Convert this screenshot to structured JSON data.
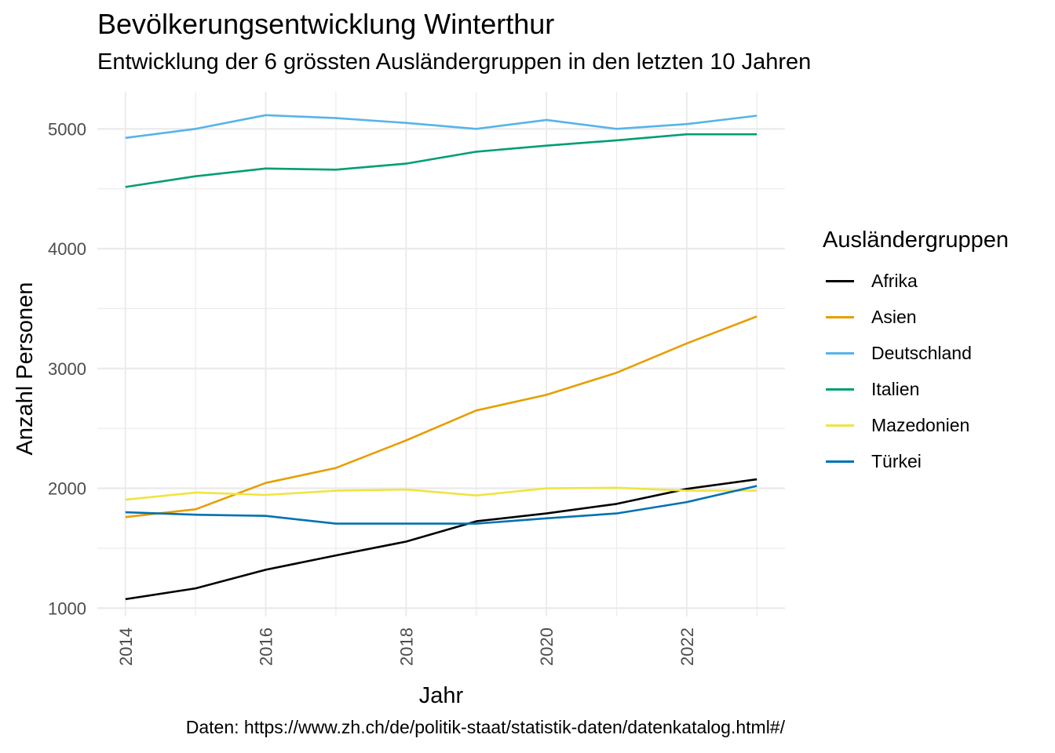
{
  "chart_data": {
    "type": "line",
    "title": "Bevölkerungsentwicklung Winterthur",
    "subtitle": "Entwicklung der 6 grössten Ausländergruppen in den letzten 10 Jahren",
    "xlabel": "Jahr",
    "ylabel": "Anzahl Personen",
    "caption": "Daten: https://www.zh.ch/de/politik-staat/statistik-daten/datenkatalog.html#/",
    "legend_title": "Ausländergruppen",
    "legend_position": "right",
    "grid": true,
    "x": [
      2014,
      2015,
      2016,
      2017,
      2018,
      2019,
      2020,
      2021,
      2022,
      2023
    ],
    "x_ticks": [
      2014,
      2016,
      2018,
      2020,
      2022
    ],
    "y_ticks": [
      1000,
      2000,
      3000,
      4000,
      5000
    ],
    "xlim": [
      2013.6,
      2023.4
    ],
    "ylim": [
      930,
      5310
    ],
    "series": [
      {
        "name": "Afrika",
        "color": "#000000",
        "values": [
          1075,
          1165,
          1320,
          1440,
          1555,
          1725,
          1790,
          1870,
          1995,
          2075
        ]
      },
      {
        "name": "Asien",
        "color": "#E69F00",
        "values": [
          1760,
          1825,
          2045,
          2170,
          2400,
          2650,
          2780,
          2965,
          3210,
          3435
        ]
      },
      {
        "name": "Deutschland",
        "color": "#56B4E9",
        "values": [
          4925,
          5000,
          5115,
          5090,
          5050,
          5000,
          5075,
          5000,
          5040,
          5110
        ]
      },
      {
        "name": "Italien",
        "color": "#009E73",
        "values": [
          4515,
          4605,
          4670,
          4660,
          4710,
          4810,
          4860,
          4905,
          4955,
          4955
        ]
      },
      {
        "name": "Mazedonien",
        "color": "#F0E442",
        "values": [
          1905,
          1965,
          1945,
          1980,
          1990,
          1940,
          2000,
          2005,
          1980,
          1980
        ]
      },
      {
        "name": "Türkei",
        "color": "#0072B2",
        "values": [
          1800,
          1780,
          1770,
          1705,
          1705,
          1705,
          1750,
          1790,
          1885,
          2020
        ]
      }
    ]
  }
}
